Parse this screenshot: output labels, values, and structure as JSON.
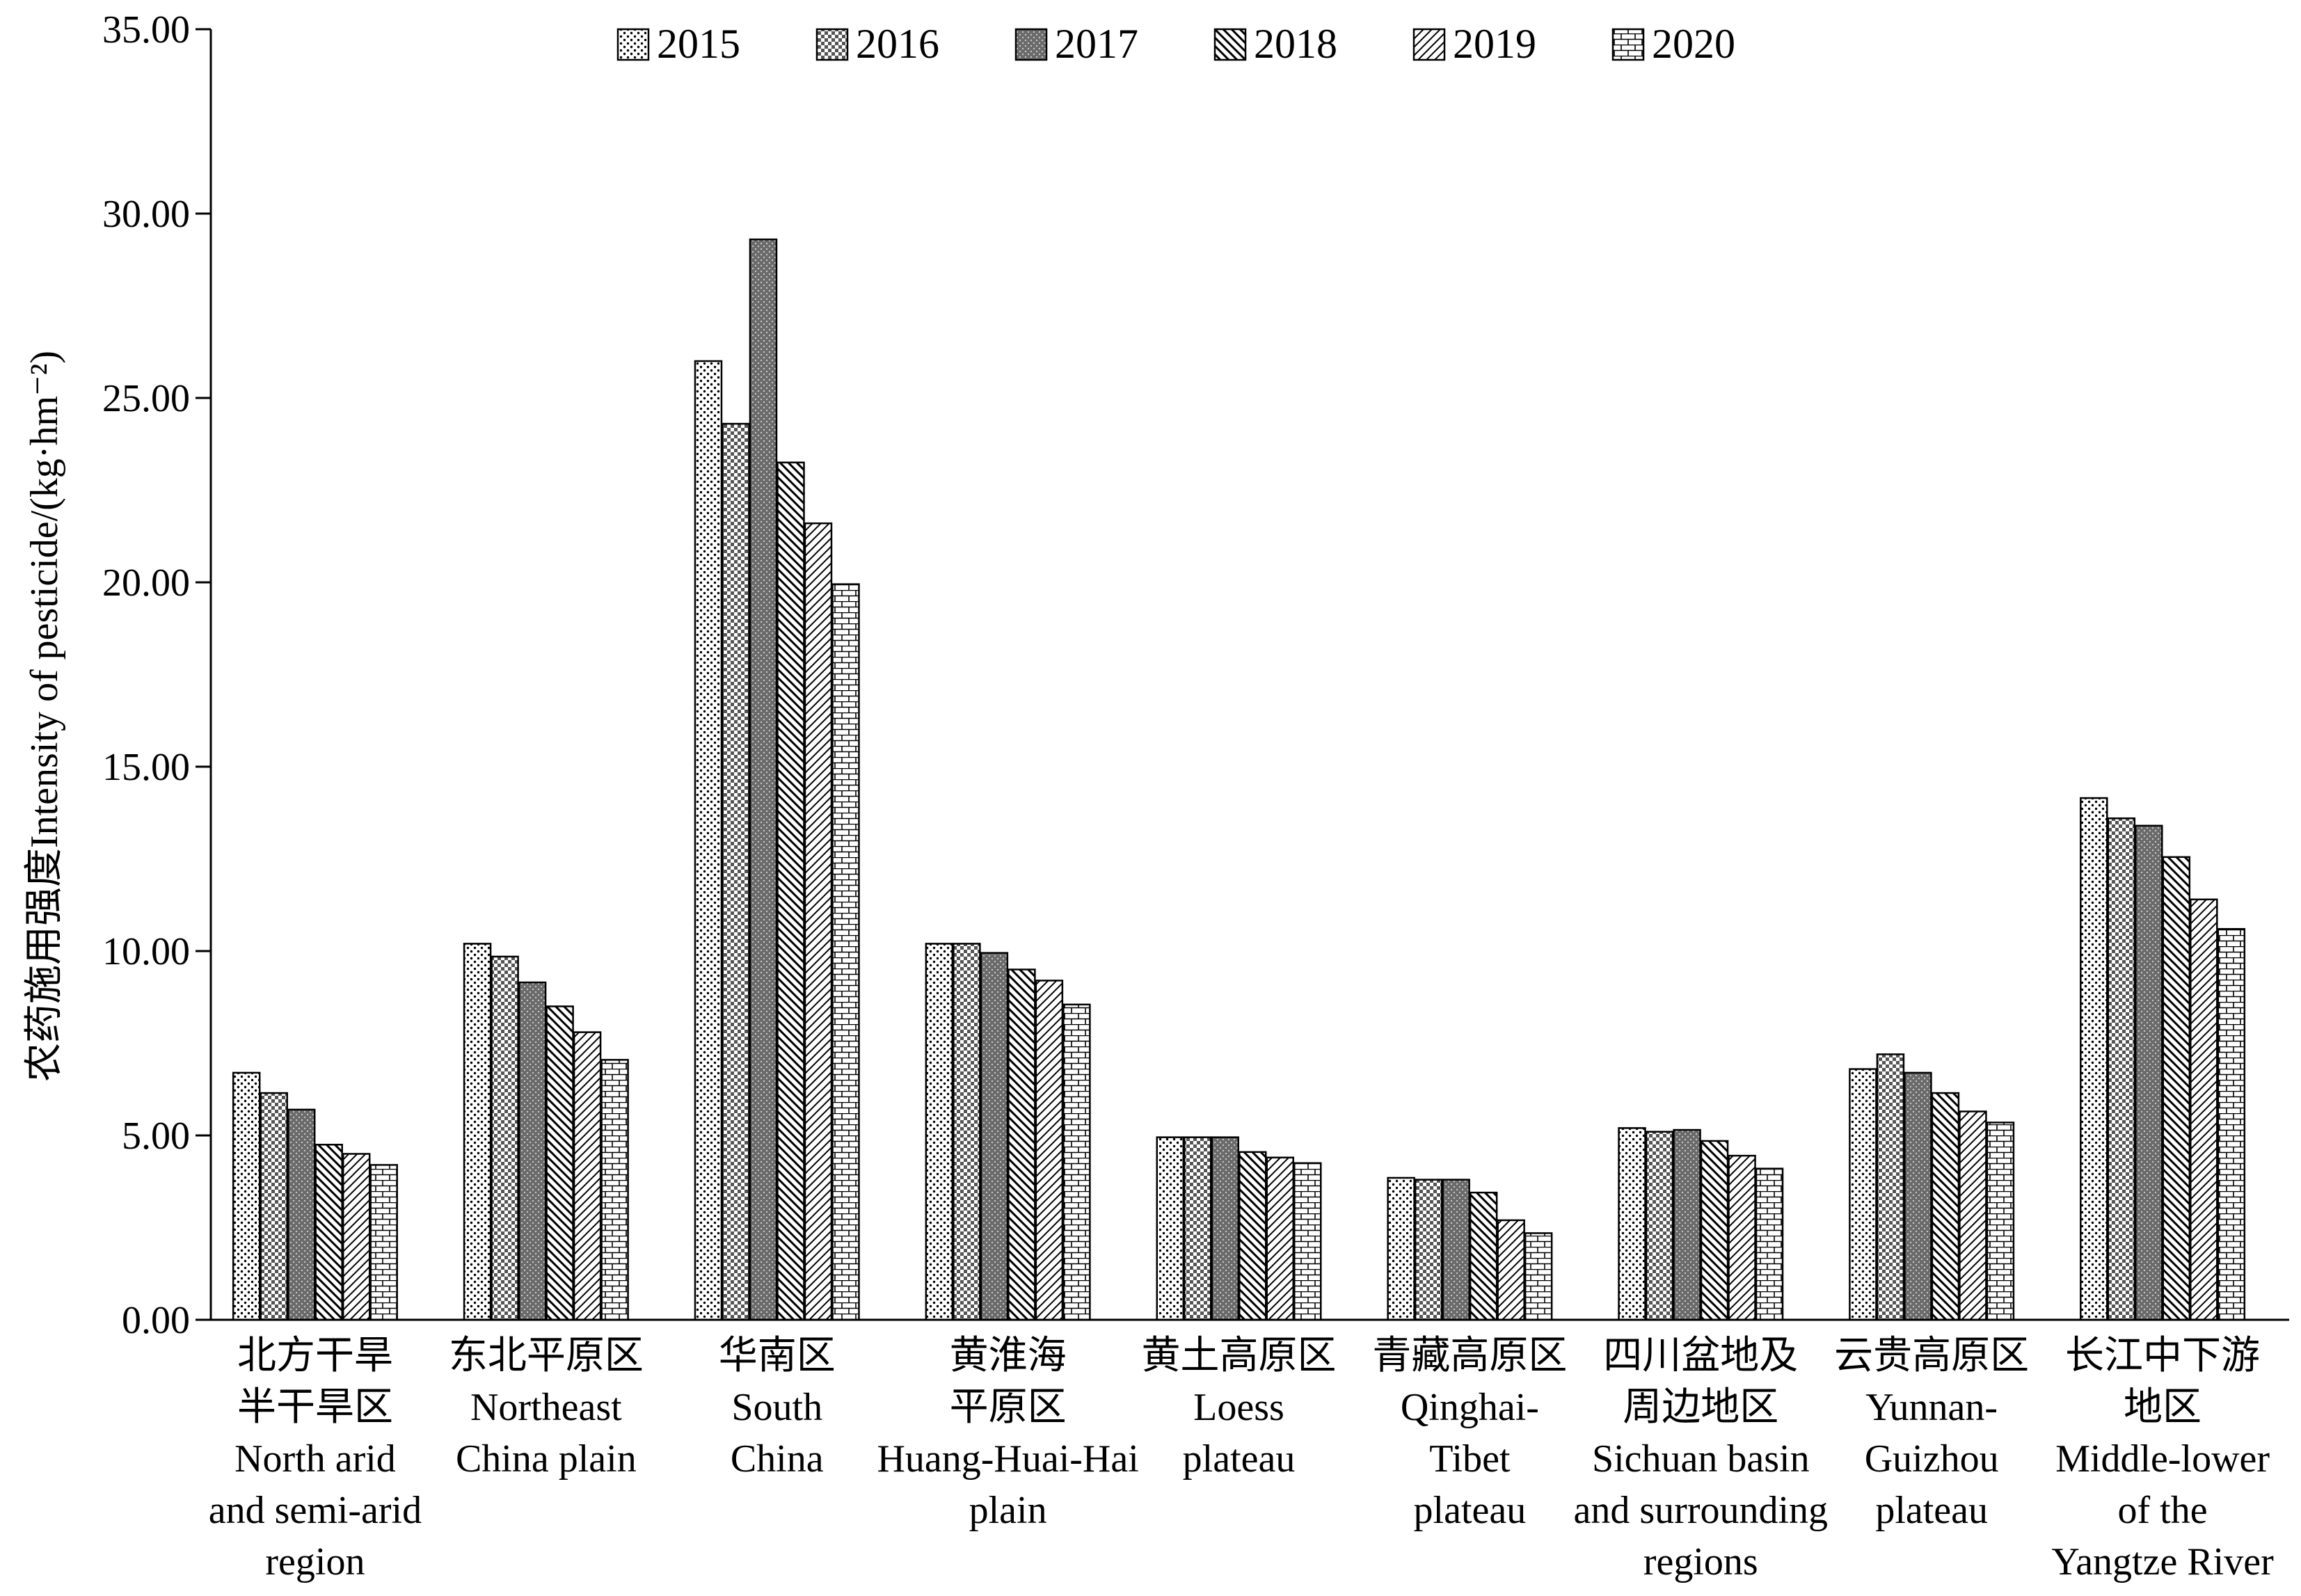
{
  "chart_data": {
    "type": "bar",
    "title": "",
    "ylabel": "农药施用强度Intensity of pesticide/(kg·hm⁻²)",
    "xlabel": "",
    "ylim": [
      0,
      35
    ],
    "yticks": [
      "0.00",
      "5.00",
      "10.00",
      "15.00",
      "20.00",
      "25.00",
      "30.00",
      "35.00"
    ],
    "grid": false,
    "legend_position": "top",
    "categories": [
      [
        "北方干旱",
        "半干旱区",
        "North arid",
        "and semi-arid",
        "region"
      ],
      [
        "东北平原区",
        "Northeast",
        "China plain"
      ],
      [
        "华南区",
        "South",
        "China"
      ],
      [
        "黄淮海",
        "平原区",
        "Huang-Huai-Hai",
        "plain"
      ],
      [
        "黄土高原区",
        "Loess",
        "plateau"
      ],
      [
        "青藏高原区",
        "Qinghai-",
        "Tibet",
        "plateau"
      ],
      [
        "四川盆地及",
        "周边地区",
        "Sichuan basin",
        "and surrounding",
        "regions"
      ],
      [
        "云贵高原区",
        "Yunnan-",
        "Guizhou",
        "plateau"
      ],
      [
        "长江中下游",
        "地区",
        "Middle-lower",
        "of the",
        "Yangtze River"
      ]
    ],
    "series": [
      {
        "name": "2015",
        "pattern": "dots",
        "values": [
          6.7,
          10.2,
          26.0,
          10.2,
          4.95,
          3.85,
          5.2,
          6.8,
          14.15
        ]
      },
      {
        "name": "2016",
        "pattern": "checker",
        "values": [
          6.15,
          9.85,
          24.3,
          10.2,
          4.95,
          3.8,
          5.1,
          7.2,
          13.6
        ]
      },
      {
        "name": "2017",
        "pattern": "dark",
        "values": [
          5.7,
          9.15,
          29.3,
          9.95,
          4.95,
          3.8,
          5.15,
          6.7,
          13.4
        ]
      },
      {
        "name": "2018",
        "pattern": "backslash",
        "values": [
          4.75,
          8.5,
          23.25,
          9.5,
          4.55,
          3.45,
          4.85,
          6.15,
          12.55
        ]
      },
      {
        "name": "2019",
        "pattern": "slash",
        "values": [
          4.5,
          7.8,
          21.6,
          9.2,
          4.4,
          2.7,
          4.45,
          5.65,
          11.4
        ]
      },
      {
        "name": "2020",
        "pattern": "brick",
        "values": [
          4.2,
          7.05,
          19.95,
          8.55,
          4.25,
          2.35,
          4.1,
          5.35,
          10.6
        ]
      }
    ]
  }
}
